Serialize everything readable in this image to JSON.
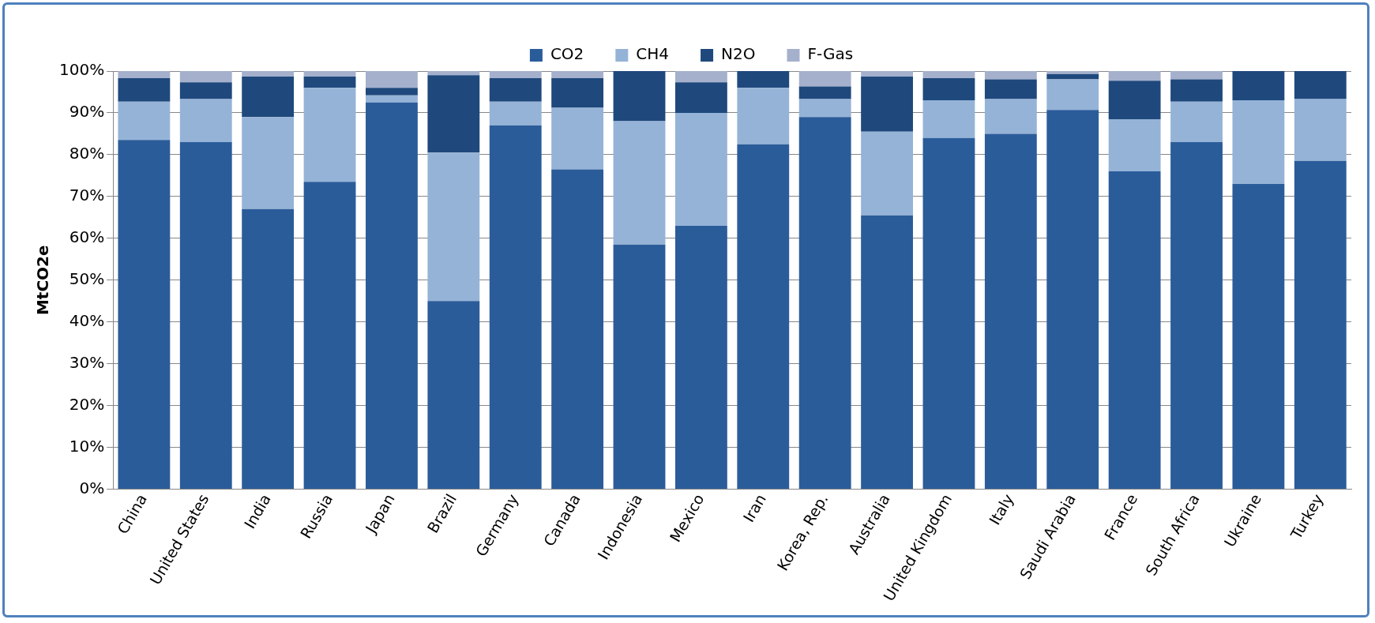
{
  "chart_data": {
    "type": "bar",
    "stacked": true,
    "ylabel": "MtCO2e",
    "legend": "top",
    "grid": "y",
    "categories": [
      "China",
      "United States",
      "India",
      "Russia",
      "Japan",
      "Brazil",
      "Germany",
      "Canada",
      "Indonesia",
      "Mexico",
      "Iran",
      "Korea, Rep.",
      "Australia",
      "United Kingdom",
      "Italy",
      "Saudi Arabia",
      "France",
      "South Africa",
      "Ukraine",
      "Turkey"
    ],
    "ylim": [
      0,
      100
    ],
    "yticks": [
      {
        "value": 0,
        "label": "0%"
      },
      {
        "value": 10,
        "label": "10%"
      },
      {
        "value": 20,
        "label": "20%"
      },
      {
        "value": 30,
        "label": "30%"
      },
      {
        "value": 40,
        "label": "40%"
      },
      {
        "value": 50,
        "label": "50%"
      },
      {
        "value": 60,
        "label": "60%"
      },
      {
        "value": 70,
        "label": "70%"
      },
      {
        "value": 80,
        "label": "80%"
      },
      {
        "value": 90,
        "label": "90%"
      },
      {
        "value": 100,
        "label": "100%"
      }
    ],
    "series": [
      {
        "name": "CO2",
        "color": "#2b5c9a",
        "values": [
          83.5,
          83,
          67,
          73.5,
          92.5,
          45,
          87,
          76.5,
          58.5,
          63,
          82.5,
          89,
          65.5,
          84,
          85,
          90.7,
          76,
          83,
          73,
          78.5
        ]
      },
      {
        "name": "CH4",
        "color": "#95b3d7",
        "values": [
          9.2,
          10.3,
          22,
          22.5,
          1.7,
          35.5,
          5.7,
          14.7,
          29.5,
          27,
          13.5,
          4.3,
          20,
          9,
          8.3,
          7.3,
          12.5,
          9.7,
          20,
          14.8
        ]
      },
      {
        "name": "N2O",
        "color": "#1f497d",
        "values": [
          5.6,
          4,
          9.7,
          2.7,
          1.8,
          18.5,
          5.6,
          7.1,
          12,
          7.3,
          4,
          3,
          13.2,
          5.3,
          4.7,
          1.3,
          9.2,
          5.3,
          7,
          6.7
        ]
      },
      {
        "name": "F-Gas",
        "color": "#a5b0cc",
        "values": [
          1.7,
          2.7,
          1.3,
          1.3,
          4,
          1,
          1.7,
          1.7,
          0,
          2.7,
          null,
          3.7,
          1.3,
          1.7,
          2,
          0.7,
          2.3,
          2,
          null,
          null
        ]
      }
    ]
  }
}
